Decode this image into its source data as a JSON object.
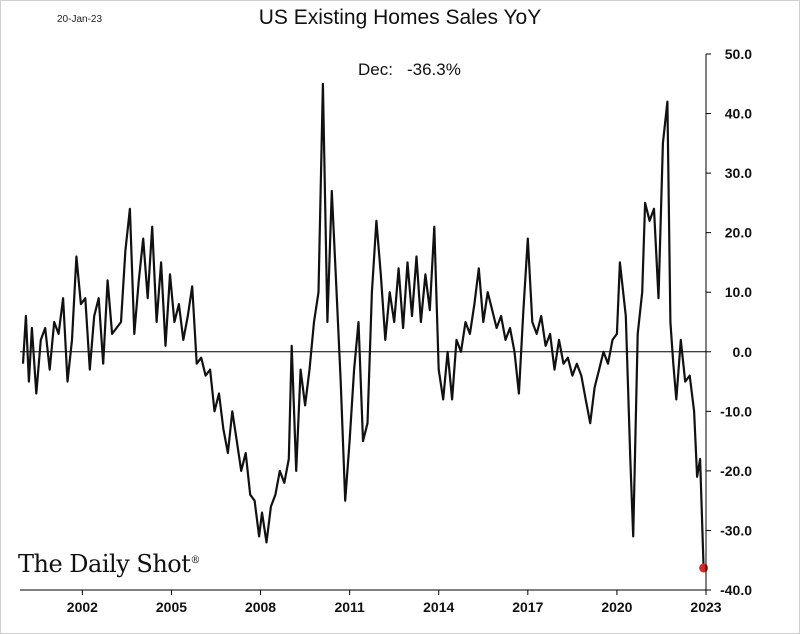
{
  "header": {
    "date": "20-Jan-23",
    "title": "US Existing Homes Sales YoY"
  },
  "annotation": {
    "label": "Dec:",
    "value": "-36.3%"
  },
  "logo": {
    "text": "The Daily Shot",
    "mark": "®"
  },
  "colors": {
    "line": "#111111",
    "highlight": "#d62828",
    "axis": "#000000"
  },
  "chart_data": {
    "type": "line",
    "title": "US Existing Homes Sales YoY",
    "xlabel": "",
    "ylabel": "",
    "xlim": [
      1999.9,
      2023.0
    ],
    "ylim": [
      -40,
      50
    ],
    "x_ticks": [
      2002,
      2005,
      2008,
      2011,
      2014,
      2017,
      2020,
      2023
    ],
    "x_tick_labels": [
      "2002",
      "2005",
      "2008",
      "2011",
      "2014",
      "2017",
      "2020",
      "2023"
    ],
    "y_ticks": [
      50,
      40,
      30,
      20,
      10,
      0,
      -10,
      -20,
      -30,
      -40
    ],
    "y_tick_labels": [
      "50.0",
      "40.0",
      "30.0",
      "20.0",
      "10.0",
      "0.0",
      "-10.0",
      "-20.0",
      "-30.0",
      "-40.0"
    ],
    "y_axis_side": "right",
    "zero_line": true,
    "series": [
      {
        "name": "US Existing Homes Sales YoY",
        "points": [
          [
            2000.0,
            -2
          ],
          [
            2000.1,
            6
          ],
          [
            2000.2,
            -5
          ],
          [
            2000.3,
            4
          ],
          [
            2000.45,
            -7
          ],
          [
            2000.6,
            2
          ],
          [
            2000.75,
            4
          ],
          [
            2000.9,
            -3
          ],
          [
            2001.05,
            5
          ],
          [
            2001.2,
            3
          ],
          [
            2001.35,
            9
          ],
          [
            2001.5,
            -5
          ],
          [
            2001.65,
            2
          ],
          [
            2001.8,
            16
          ],
          [
            2001.95,
            8
          ],
          [
            2002.1,
            9
          ],
          [
            2002.25,
            -3
          ],
          [
            2002.4,
            6
          ],
          [
            2002.55,
            9
          ],
          [
            2002.7,
            -2
          ],
          [
            2002.85,
            12
          ],
          [
            2003.0,
            3
          ],
          [
            2003.15,
            4
          ],
          [
            2003.3,
            5
          ],
          [
            2003.45,
            17
          ],
          [
            2003.6,
            24
          ],
          [
            2003.75,
            3
          ],
          [
            2003.9,
            12
          ],
          [
            2004.05,
            19
          ],
          [
            2004.2,
            9
          ],
          [
            2004.35,
            21
          ],
          [
            2004.5,
            5
          ],
          [
            2004.65,
            15
          ],
          [
            2004.8,
            1
          ],
          [
            2004.95,
            13
          ],
          [
            2005.1,
            5
          ],
          [
            2005.25,
            8
          ],
          [
            2005.4,
            2
          ],
          [
            2005.55,
            6
          ],
          [
            2005.7,
            11
          ],
          [
            2005.85,
            -2
          ],
          [
            2006.0,
            -1
          ],
          [
            2006.15,
            -4
          ],
          [
            2006.3,
            -3
          ],
          [
            2006.45,
            -10
          ],
          [
            2006.6,
            -7
          ],
          [
            2006.75,
            -13
          ],
          [
            2006.9,
            -17
          ],
          [
            2007.05,
            -10
          ],
          [
            2007.2,
            -15
          ],
          [
            2007.35,
            -20
          ],
          [
            2007.5,
            -17
          ],
          [
            2007.65,
            -24
          ],
          [
            2007.8,
            -25
          ],
          [
            2007.95,
            -31
          ],
          [
            2008.05,
            -27
          ],
          [
            2008.2,
            -32
          ],
          [
            2008.35,
            -26
          ],
          [
            2008.5,
            -24
          ],
          [
            2008.65,
            -20
          ],
          [
            2008.8,
            -22
          ],
          [
            2008.95,
            -18
          ],
          [
            2009.05,
            1
          ],
          [
            2009.2,
            -20
          ],
          [
            2009.35,
            -3
          ],
          [
            2009.5,
            -9
          ],
          [
            2009.65,
            -3
          ],
          [
            2009.8,
            5
          ],
          [
            2009.95,
            10
          ],
          [
            2010.1,
            45
          ],
          [
            2010.25,
            5
          ],
          [
            2010.4,
            27
          ],
          [
            2010.55,
            11
          ],
          [
            2010.7,
            -5
          ],
          [
            2010.85,
            -25
          ],
          [
            2011.0,
            -15
          ],
          [
            2011.15,
            -3
          ],
          [
            2011.3,
            5
          ],
          [
            2011.45,
            -15
          ],
          [
            2011.6,
            -12
          ],
          [
            2011.75,
            10
          ],
          [
            2011.9,
            22
          ],
          [
            2012.05,
            13
          ],
          [
            2012.2,
            2
          ],
          [
            2012.35,
            10
          ],
          [
            2012.5,
            5
          ],
          [
            2012.65,
            14
          ],
          [
            2012.8,
            4
          ],
          [
            2012.95,
            15
          ],
          [
            2013.1,
            6
          ],
          [
            2013.25,
            16
          ],
          [
            2013.4,
            5
          ],
          [
            2013.55,
            13
          ],
          [
            2013.7,
            7
          ],
          [
            2013.85,
            21
          ],
          [
            2014.0,
            -3
          ],
          [
            2014.15,
            -8
          ],
          [
            2014.3,
            0
          ],
          [
            2014.45,
            -8
          ],
          [
            2014.6,
            2
          ],
          [
            2014.75,
            0
          ],
          [
            2014.9,
            5
          ],
          [
            2015.05,
            3
          ],
          [
            2015.2,
            8
          ],
          [
            2015.35,
            14
          ],
          [
            2015.5,
            5
          ],
          [
            2015.65,
            10
          ],
          [
            2015.8,
            7
          ],
          [
            2015.95,
            4
          ],
          [
            2016.1,
            6
          ],
          [
            2016.25,
            2
          ],
          [
            2016.4,
            4
          ],
          [
            2016.55,
            0
          ],
          [
            2016.7,
            -7
          ],
          [
            2016.85,
            7
          ],
          [
            2017.0,
            19
          ],
          [
            2017.15,
            5
          ],
          [
            2017.3,
            3
          ],
          [
            2017.45,
            6
          ],
          [
            2017.6,
            1
          ],
          [
            2017.75,
            3
          ],
          [
            2017.9,
            -3
          ],
          [
            2018.05,
            2
          ],
          [
            2018.2,
            -2
          ],
          [
            2018.35,
            -1
          ],
          [
            2018.5,
            -4
          ],
          [
            2018.65,
            -2
          ],
          [
            2018.8,
            -4
          ],
          [
            2018.95,
            -8
          ],
          [
            2019.1,
            -12
          ],
          [
            2019.25,
            -6
          ],
          [
            2019.4,
            -3
          ],
          [
            2019.55,
            0
          ],
          [
            2019.7,
            -2
          ],
          [
            2019.85,
            2
          ],
          [
            2020.0,
            3
          ],
          [
            2020.1,
            15
          ],
          [
            2020.3,
            6
          ],
          [
            2020.45,
            -18
          ],
          [
            2020.55,
            -31
          ],
          [
            2020.7,
            3
          ],
          [
            2020.85,
            10
          ],
          [
            2020.95,
            25
          ],
          [
            2021.1,
            22
          ],
          [
            2021.25,
            24
          ],
          [
            2021.4,
            9
          ],
          [
            2021.55,
            35
          ],
          [
            2021.7,
            42
          ],
          [
            2021.8,
            5
          ],
          [
            2021.9,
            -2
          ],
          [
            2022.0,
            -8
          ],
          [
            2022.15,
            2
          ],
          [
            2022.3,
            -5
          ],
          [
            2022.45,
            -4
          ],
          [
            2022.6,
            -10
          ],
          [
            2022.7,
            -21
          ],
          [
            2022.8,
            -18
          ],
          [
            2022.92,
            -36.3
          ]
        ]
      }
    ],
    "last_point": {
      "label": "Dec",
      "value": -36.3
    }
  }
}
